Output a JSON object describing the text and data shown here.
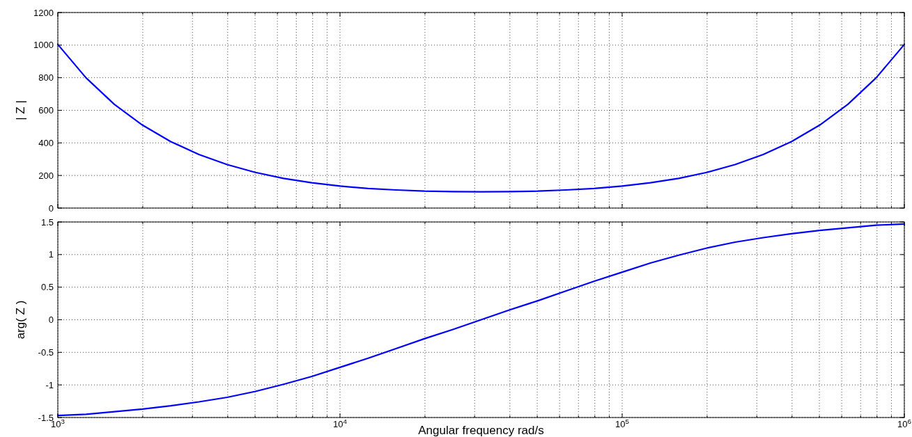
{
  "chart_data": [
    {
      "type": "line",
      "ylabel": "| Z |",
      "xlim": [
        1000,
        1000000
      ],
      "ylim": [
        0,
        1200
      ],
      "log": "x",
      "grid": true,
      "tick_labels": "y",
      "line_style": "solid",
      "marker": "none",
      "xticks": [
        {
          "value": 1000,
          "label": null
        },
        {
          "value": 2000,
          "label": null
        },
        {
          "value": 3000,
          "label": null
        },
        {
          "value": 4000,
          "label": null
        },
        {
          "value": 5000,
          "label": null
        },
        {
          "value": 6000,
          "label": null
        },
        {
          "value": 7000,
          "label": null
        },
        {
          "value": 8000,
          "label": null
        },
        {
          "value": 9000,
          "label": null
        },
        {
          "value": 10000,
          "label": null
        },
        {
          "value": 20000,
          "label": null
        },
        {
          "value": 30000,
          "label": null
        },
        {
          "value": 40000,
          "label": null
        },
        {
          "value": 50000,
          "label": null
        },
        {
          "value": 60000,
          "label": null
        },
        {
          "value": 70000,
          "label": null
        },
        {
          "value": 80000,
          "label": null
        },
        {
          "value": 90000,
          "label": null
        },
        {
          "value": 100000,
          "label": null
        },
        {
          "value": 200000,
          "label": null
        },
        {
          "value": 300000,
          "label": null
        },
        {
          "value": 400000,
          "label": null
        },
        {
          "value": 500000,
          "label": null
        },
        {
          "value": 600000,
          "label": null
        },
        {
          "value": 700000,
          "label": null
        },
        {
          "value": 800000,
          "label": null
        },
        {
          "value": 900000,
          "label": null
        },
        {
          "value": 1000000,
          "label": null
        }
      ],
      "yticks": [
        0,
        200,
        400,
        600,
        800,
        1000,
        1200
      ],
      "x": [
        1000,
        1259,
        1585,
        1995,
        2512,
        3162,
        3981,
        5012,
        6310,
        7943,
        10000,
        12589,
        15849,
        19953,
        25119,
        31623,
        39811,
        50119,
        63096,
        79433,
        100000,
        125893,
        158489,
        199526,
        251189,
        316228,
        398107,
        501187,
        630957,
        794328,
        1000000
      ],
      "series": [
        {
          "color": "#0000ff",
          "values": [
            1004,
            799,
            637,
            509,
            408,
            329,
            267,
            219,
            182,
            155,
            135,
            120,
            111,
            104,
            101,
            100,
            101,
            104,
            111,
            120,
            135,
            155,
            182,
            219,
            267,
            329,
            408,
            509,
            637,
            799,
            1004
          ]
        }
      ]
    },
    {
      "type": "line",
      "ylabel": "arg( Z )",
      "xlabel": "Angular frequency rad/s",
      "xlim": [
        1000,
        1000000
      ],
      "ylim": [
        -1.5,
        1.5
      ],
      "log": "x",
      "grid": true,
      "line_style": "solid",
      "marker": "none",
      "xticks": [
        {
          "value": 1000,
          "label": "10$^{3}$"
        },
        {
          "value": 2000,
          "label": null
        },
        {
          "value": 3000,
          "label": null
        },
        {
          "value": 4000,
          "label": null
        },
        {
          "value": 5000,
          "label": null
        },
        {
          "value": 6000,
          "label": null
        },
        {
          "value": 7000,
          "label": null
        },
        {
          "value": 8000,
          "label": null
        },
        {
          "value": 9000,
          "label": null
        },
        {
          "value": 10000,
          "label": "10$^{4}$"
        },
        {
          "value": 20000,
          "label": null
        },
        {
          "value": 30000,
          "label": null
        },
        {
          "value": 40000,
          "label": null
        },
        {
          "value": 50000,
          "label": null
        },
        {
          "value": 60000,
          "label": null
        },
        {
          "value": 70000,
          "label": null
        },
        {
          "value": 80000,
          "label": null
        },
        {
          "value": 90000,
          "label": null
        },
        {
          "value": 100000,
          "label": "10$^{5}$"
        },
        {
          "value": 200000,
          "label": null
        },
        {
          "value": 300000,
          "label": null
        },
        {
          "value": 400000,
          "label": null
        },
        {
          "value": 500000,
          "label": null
        },
        {
          "value": 600000,
          "label": null
        },
        {
          "value": 700000,
          "label": null
        },
        {
          "value": 800000,
          "label": null
        },
        {
          "value": 900000,
          "label": null
        },
        {
          "value": 1000000,
          "label": "10$^{6}$"
        }
      ],
      "yticks": [
        -1.5,
        -1,
        -0.5,
        0,
        0.5,
        1,
        1.5
      ],
      "x": [
        1000,
        1259,
        1585,
        1995,
        2512,
        3162,
        3981,
        5012,
        6310,
        7943,
        10000,
        12589,
        15849,
        19953,
        25119,
        31623,
        39811,
        50119,
        63096,
        79433,
        100000,
        125893,
        158489,
        199526,
        251189,
        316228,
        398107,
        501187,
        630957,
        794328,
        1000000
      ],
      "series": [
        {
          "color": "#0000ff",
          "values": [
            -1.47,
            -1.45,
            -1.41,
            -1.37,
            -1.32,
            -1.26,
            -1.19,
            -1.1,
            -0.99,
            -0.87,
            -0.73,
            -0.59,
            -0.44,
            -0.29,
            -0.15,
            0,
            0.15,
            0.29,
            0.44,
            0.59,
            0.73,
            0.87,
            0.99,
            1.1,
            1.19,
            1.26,
            1.32,
            1.37,
            1.41,
            1.45,
            1.47
          ]
        }
      ]
    }
  ]
}
